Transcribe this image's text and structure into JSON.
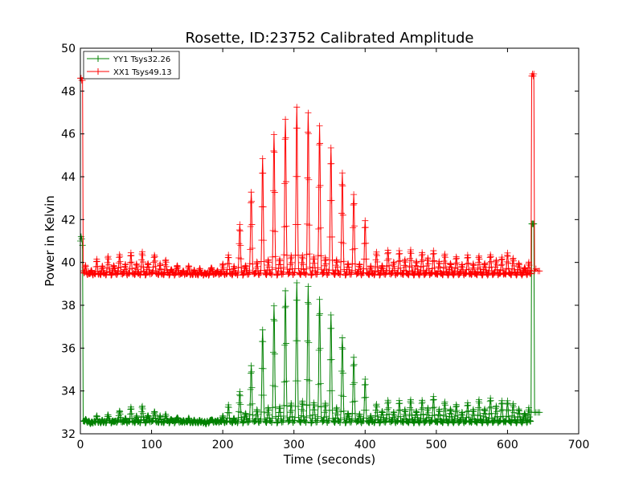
{
  "chart_data": {
    "type": "line",
    "title": "Rosette, ID:23752 Calibrated Amplitude",
    "xlabel": "Time (seconds)",
    "ylabel": "Power in Kelvin",
    "xlim": [
      0,
      700
    ],
    "ylim": [
      32,
      50
    ],
    "xticks": [
      0,
      100,
      200,
      300,
      400,
      500,
      600,
      700
    ],
    "yticks": [
      32,
      34,
      36,
      38,
      40,
      42,
      44,
      46,
      48,
      50
    ],
    "grid": false,
    "legend": {
      "placement": "top-left"
    },
    "marker": "plus",
    "series": [
      {
        "name": "YY1 Tsys32.26",
        "color": "#008000",
        "baseline": 32.55,
        "start": {
          "x": [
            0,
            1,
            2,
            3,
            4
          ],
          "y": [
            41.0,
            41.2,
            41.1,
            40.8,
            32.6
          ]
        },
        "peaks": [
          [
            7,
            32.7
          ],
          [
            15,
            32.5
          ],
          [
            23,
            32.8
          ],
          [
            31,
            32.6
          ],
          [
            39,
            32.9
          ],
          [
            47,
            32.6
          ],
          [
            55,
            33.1
          ],
          [
            63,
            32.7
          ],
          [
            71,
            33.2
          ],
          [
            79,
            32.8
          ],
          [
            87,
            33.3
          ],
          [
            95,
            32.9
          ],
          [
            104,
            33.0
          ],
          [
            112,
            32.8
          ],
          [
            120,
            32.9
          ],
          [
            128,
            32.7
          ],
          [
            136,
            32.8
          ],
          [
            144,
            32.6
          ],
          [
            152,
            32.7
          ],
          [
            160,
            32.6
          ],
          [
            168,
            32.6
          ],
          [
            176,
            32.5
          ],
          [
            184,
            32.7
          ],
          [
            192,
            32.6
          ],
          [
            200,
            32.8
          ],
          [
            208,
            33.3
          ],
          [
            216,
            32.7
          ],
          [
            224,
            34.0
          ],
          [
            232,
            33.0
          ],
          [
            240,
            35.2
          ],
          [
            248,
            33.1
          ],
          [
            256,
            36.8
          ],
          [
            264,
            33.2
          ],
          [
            272,
            38.0
          ],
          [
            280,
            33.3
          ],
          [
            288,
            38.7
          ],
          [
            296,
            33.4
          ],
          [
            304,
            39.0
          ],
          [
            312,
            33.5
          ],
          [
            320,
            38.9
          ],
          [
            328,
            33.5
          ],
          [
            336,
            38.3
          ],
          [
            344,
            33.4
          ],
          [
            352,
            37.5
          ],
          [
            360,
            33.2
          ],
          [
            368,
            36.5
          ],
          [
            376,
            33.0
          ],
          [
            384,
            35.6
          ],
          [
            392,
            32.9
          ],
          [
            400,
            34.5
          ],
          [
            408,
            32.8
          ],
          [
            416,
            33.4
          ],
          [
            424,
            33.1
          ],
          [
            432,
            33.6
          ],
          [
            440,
            33.0
          ],
          [
            448,
            33.5
          ],
          [
            456,
            33.1
          ],
          [
            464,
            33.6
          ],
          [
            472,
            33.1
          ],
          [
            480,
            33.6
          ],
          [
            488,
            33.2
          ],
          [
            496,
            33.7
          ],
          [
            504,
            33.1
          ],
          [
            512,
            33.5
          ],
          [
            520,
            33.2
          ],
          [
            528,
            33.4
          ],
          [
            536,
            33.0
          ],
          [
            544,
            33.4
          ],
          [
            552,
            33.1
          ],
          [
            560,
            33.6
          ],
          [
            568,
            33.2
          ],
          [
            576,
            33.7
          ],
          [
            584,
            33.3
          ],
          [
            592,
            33.5
          ],
          [
            600,
            33.5
          ],
          [
            608,
            33.4
          ],
          [
            616,
            33.2
          ],
          [
            624,
            33.0
          ],
          [
            630,
            33.2
          ]
        ],
        "end": {
          "x": [
            633,
            634,
            635,
            636,
            637,
            638,
            640,
            643,
            645
          ],
          "y": [
            33.0,
            41.8,
            41.8,
            41.8,
            41.8,
            33.0,
            33.0,
            33.0,
            33.0
          ]
        }
      },
      {
        "name": "XX1 Tsys49.13",
        "color": "#ff0000",
        "baseline": 39.45,
        "start": {
          "x": [
            0,
            1,
            2,
            3,
            4
          ],
          "y": [
            48.6,
            48.6,
            48.5,
            48.5,
            39.6
          ]
        },
        "peaks": [
          [
            7,
            39.9
          ],
          [
            15,
            39.6
          ],
          [
            23,
            40.1
          ],
          [
            31,
            39.8
          ],
          [
            39,
            40.3
          ],
          [
            47,
            39.9
          ],
          [
            55,
            40.4
          ],
          [
            63,
            39.9
          ],
          [
            71,
            40.4
          ],
          [
            79,
            39.9
          ],
          [
            87,
            40.5
          ],
          [
            95,
            40.0
          ],
          [
            104,
            40.3
          ],
          [
            112,
            39.9
          ],
          [
            120,
            40.1
          ],
          [
            128,
            39.7
          ],
          [
            136,
            39.9
          ],
          [
            144,
            39.6
          ],
          [
            152,
            39.8
          ],
          [
            160,
            39.6
          ],
          [
            168,
            39.7
          ],
          [
            176,
            39.5
          ],
          [
            184,
            39.8
          ],
          [
            192,
            39.6
          ],
          [
            200,
            39.9
          ],
          [
            208,
            40.3
          ],
          [
            216,
            39.8
          ],
          [
            224,
            41.8
          ],
          [
            232,
            39.9
          ],
          [
            240,
            43.3
          ],
          [
            248,
            40.0
          ],
          [
            256,
            44.8
          ],
          [
            264,
            40.1
          ],
          [
            272,
            46.0
          ],
          [
            280,
            40.2
          ],
          [
            288,
            46.7
          ],
          [
            296,
            40.3
          ],
          [
            304,
            47.2
          ],
          [
            312,
            40.3
          ],
          [
            320,
            47.0
          ],
          [
            328,
            40.3
          ],
          [
            336,
            46.4
          ],
          [
            344,
            40.2
          ],
          [
            352,
            45.3
          ],
          [
            360,
            40.1
          ],
          [
            368,
            44.2
          ],
          [
            376,
            40.0
          ],
          [
            384,
            43.2
          ],
          [
            392,
            39.9
          ],
          [
            400,
            41.9
          ],
          [
            408,
            39.8
          ],
          [
            416,
            40.5
          ],
          [
            424,
            39.9
          ],
          [
            432,
            40.6
          ],
          [
            440,
            40.0
          ],
          [
            448,
            40.5
          ],
          [
            456,
            40.1
          ],
          [
            464,
            40.6
          ],
          [
            472,
            40.1
          ],
          [
            480,
            40.5
          ],
          [
            488,
            40.2
          ],
          [
            496,
            40.5
          ],
          [
            504,
            40.0
          ],
          [
            512,
            40.4
          ],
          [
            520,
            40.0
          ],
          [
            528,
            40.3
          ],
          [
            536,
            39.9
          ],
          [
            544,
            40.3
          ],
          [
            552,
            39.9
          ],
          [
            560,
            40.3
          ],
          [
            568,
            40.0
          ],
          [
            576,
            40.4
          ],
          [
            584,
            40.1
          ],
          [
            592,
            40.2
          ],
          [
            600,
            40.4
          ],
          [
            608,
            40.2
          ],
          [
            616,
            40.0
          ],
          [
            624,
            39.8
          ],
          [
            630,
            40.0
          ]
        ],
        "end": {
          "x": [
            633,
            634,
            635,
            636,
            637,
            638,
            640,
            643,
            645
          ],
          "y": [
            39.6,
            48.7,
            48.8,
            48.7,
            48.8,
            39.6,
            39.7,
            39.6,
            39.6
          ]
        }
      }
    ]
  }
}
